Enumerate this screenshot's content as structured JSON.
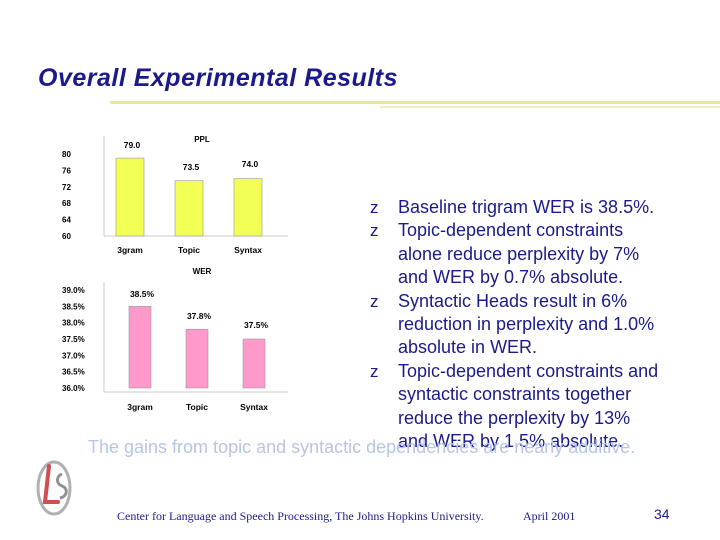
{
  "slide": {
    "title": "Overall Experimental Results",
    "overlay_text": "The gains from topic and syntactic dependencies are nearly additive.",
    "footer": {
      "center": "Center for Language and Speech Processing, The Johns Hopkins University.",
      "date": "April 2001",
      "slide_number": "34"
    }
  },
  "bullets": [
    "Baseline trigram WER is 38.5%.",
    "Topic-dependent constraints alone reduce perplexity by 7% and WER by 0.7% absolute.",
    "Syntactic Heads result in 6% reduction in perplexity and 1.0% absolute in WER.",
    "Topic-dependent constraints and syntactic constraints together reduce the perplexity by 13% and WER by 1.5% absolute."
  ],
  "bullet_lines": [
    [
      "Baseline trigram WER is 38.5%."
    ],
    [
      "Topic-dependent constraints",
      "alone reduce perplexity by 7%",
      "and WER by 0.7% absolute."
    ],
    [
      "Syntactic Heads result in 6%",
      "reduction in perplexity and 1.0%",
      "absolute in WER."
    ],
    [
      "Topic-dependent constraints and",
      "syntactic constraints together",
      "reduce the perplexity by 13%",
      "and WER by 1.5% absolute."
    ]
  ],
  "colors": {
    "title": "#1a1a8c",
    "ppl_bar": "#f2ff55",
    "wer_bar": "#ff99cc",
    "overlay": "#b6c5e6"
  },
  "chart_data": [
    {
      "type": "bar",
      "title": "PPL",
      "categories": [
        "3gram",
        "Topic",
        "Syntax"
      ],
      "values": [
        79.0,
        73.5,
        74.0
      ],
      "data_labels": [
        "79.0",
        "73.5",
        "74.0"
      ],
      "ylim": [
        60,
        80
      ],
      "yticks": [
        "80",
        "76",
        "72",
        "68",
        "64",
        "60"
      ],
      "xlabel": "",
      "ylabel": ""
    },
    {
      "type": "bar",
      "title": "WER",
      "categories": [
        "3gram",
        "Topic",
        "Syntax"
      ],
      "values": [
        38.5,
        37.8,
        37.5
      ],
      "data_labels": [
        "38.5%",
        "37.8%",
        "37.5%"
      ],
      "ylim": [
        36.0,
        39.0
      ],
      "yticks": [
        "39.0%",
        "38.5%",
        "38.0%",
        "37.5%",
        "37.0%",
        "36.5%",
        "36.0%"
      ],
      "xlabel": "",
      "ylabel": ""
    }
  ]
}
